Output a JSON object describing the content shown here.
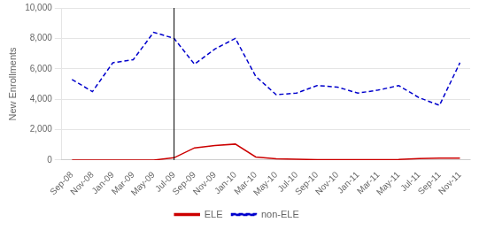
{
  "chart_data": {
    "type": "line",
    "y_label": "New Enrollments",
    "categories": [
      "Sep-08",
      "Nov-08",
      "Jan-09",
      "Mar-09",
      "May-09",
      "Jul-09",
      "Sep-09",
      "Nov-09",
      "Jan-10",
      "Mar-10",
      "May-10",
      "Jul-10",
      "Sep-10",
      "Nov-10",
      "Jan-11",
      "Mar-11",
      "May-11",
      "Jul-11",
      "Sep-11",
      "Nov-11"
    ],
    "series": [
      {
        "name": "non-ELE",
        "color": "#0000cc",
        "line_style": "dashed",
        "values": [
          5300,
          4500,
          6400,
          6600,
          8400,
          8000,
          6300,
          7300,
          8000,
          5500,
          4300,
          4400,
          4900,
          4800,
          4400,
          4600,
          4900,
          4100,
          3600,
          6400
        ]
      },
      {
        "name": "ELE",
        "color": "#cc0000",
        "line_style": "solid",
        "values": [
          0,
          0,
          0,
          0,
          0,
          150,
          800,
          950,
          1050,
          200,
          80,
          50,
          30,
          30,
          30,
          30,
          40,
          100,
          130,
          120
        ]
      }
    ],
    "vline_x": "Jul-09",
    "ylim": [
      0,
      10000
    ],
    "yticks": [
      0,
      {
        "value": 2000,
        "label": "2,000"
      },
      {
        "value": 4000,
        "label": "4,000"
      },
      {
        "value": 6000,
        "label": "6,000"
      },
      {
        "value": 8000,
        "label": "8,000"
      },
      {
        "value": 10000,
        "label": "10,000"
      }
    ],
    "grid": true,
    "legend": "bottom"
  }
}
